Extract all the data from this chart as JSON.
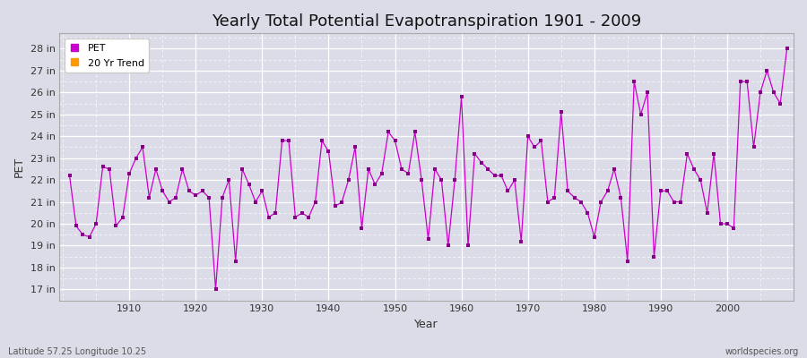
{
  "title": "Yearly Total Potential Evapotranspiration 1901 - 2009",
  "xlabel": "Year",
  "ylabel": "PET",
  "bottom_left": "Latitude 57.25 Longitude 10.25",
  "bottom_right": "worldspecies.org",
  "legend_labels": [
    "PET",
    "20 Yr Trend"
  ],
  "legend_colors": [
    "#cc00cc",
    "#ff9900"
  ],
  "line_color": "#cc00cc",
  "marker_color": "#880088",
  "bg_color": "#dcdce8",
  "plot_bg_color": "#dcdce8",
  "ylim": [
    16.5,
    28.7
  ],
  "yticks": [
    17,
    18,
    19,
    20,
    21,
    22,
    23,
    24,
    25,
    26,
    27,
    28
  ],
  "ytick_labels": [
    "17 in",
    "18 in",
    "19 in",
    "20 in",
    "21 in",
    "22 in",
    "23 in",
    "24 in",
    "25 in",
    "26 in",
    "27 in",
    "28 in"
  ],
  "xlim": [
    1899.5,
    2010
  ],
  "xticks": [
    1910,
    1920,
    1930,
    1940,
    1950,
    1960,
    1970,
    1980,
    1990,
    2000
  ],
  "years": [
    1901,
    1902,
    1903,
    1904,
    1905,
    1906,
    1907,
    1908,
    1909,
    1910,
    1911,
    1912,
    1913,
    1914,
    1915,
    1916,
    1917,
    1918,
    1919,
    1920,
    1921,
    1922,
    1923,
    1924,
    1925,
    1926,
    1927,
    1928,
    1929,
    1930,
    1931,
    1932,
    1933,
    1934,
    1935,
    1936,
    1937,
    1938,
    1939,
    1940,
    1941,
    1942,
    1943,
    1944,
    1945,
    1946,
    1947,
    1948,
    1949,
    1950,
    1951,
    1952,
    1953,
    1954,
    1955,
    1956,
    1957,
    1958,
    1959,
    1960,
    1961,
    1962,
    1963,
    1964,
    1965,
    1966,
    1967,
    1968,
    1969,
    1970,
    1971,
    1972,
    1973,
    1974,
    1975,
    1976,
    1977,
    1978,
    1979,
    1980,
    1981,
    1982,
    1983,
    1984,
    1985,
    1986,
    1987,
    1988,
    1989,
    1990,
    1991,
    1992,
    1993,
    1994,
    1995,
    1996,
    1997,
    1998,
    1999,
    2000,
    2001,
    2002,
    2003,
    2004,
    2005,
    2006,
    2007,
    2008,
    2009
  ],
  "pet": [
    22.2,
    19.9,
    19.5,
    19.4,
    20.0,
    22.6,
    22.5,
    19.9,
    20.3,
    22.3,
    23.0,
    23.5,
    21.2,
    22.5,
    21.5,
    21.0,
    21.2,
    22.5,
    21.5,
    21.3,
    21.5,
    21.2,
    17.0,
    21.2,
    22.0,
    18.3,
    22.5,
    21.8,
    21.0,
    21.5,
    20.3,
    20.5,
    23.8,
    23.8,
    20.3,
    20.5,
    20.3,
    21.0,
    23.8,
    23.3,
    20.8,
    21.0,
    22.0,
    23.5,
    19.8,
    22.5,
    21.8,
    22.3,
    24.2,
    23.8,
    22.5,
    22.3,
    24.2,
    22.0,
    19.3,
    22.5,
    22.0,
    19.0,
    22.0,
    25.8,
    19.0,
    23.2,
    22.8,
    22.5,
    22.2,
    22.2,
    21.5,
    22.0,
    19.2,
    24.0,
    23.5,
    23.8,
    21.0,
    21.2,
    25.1,
    21.5,
    21.2,
    21.0,
    20.5,
    19.4,
    21.0,
    21.5,
    22.5,
    21.2,
    18.3,
    26.5,
    25.0,
    26.0,
    18.5,
    21.5,
    21.5,
    21.0,
    21.0,
    23.2,
    22.5,
    22.0,
    20.5,
    23.2,
    20.0,
    20.0,
    19.8,
    26.5,
    26.5,
    23.5,
    26.0,
    27.0,
    26.0,
    25.5,
    28.0
  ],
  "grid_color": "#c8c8d4",
  "grid_minor_color": "#d4d4de",
  "spine_color": "#aaaaaa",
  "tick_label_color": "#333333",
  "title_fontsize": 13,
  "axis_fontsize": 9,
  "tick_fontsize": 8
}
